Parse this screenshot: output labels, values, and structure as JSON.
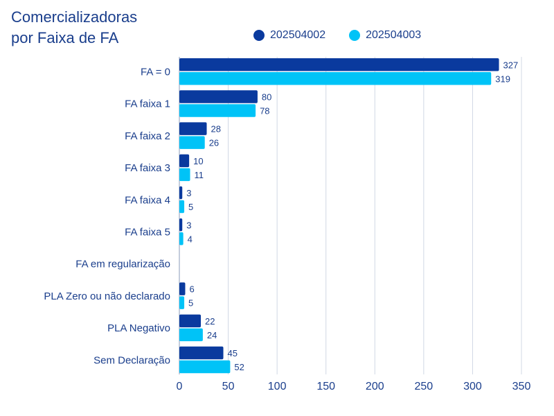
{
  "chart_data": {
    "type": "bar",
    "orientation": "horizontal",
    "title_line1": "Comercializadoras",
    "title_line2": "por Faixa de FA",
    "categories": [
      "FA = 0",
      "FA faixa 1",
      "FA faixa 2",
      "FA faixa 3",
      "FA faixa 4",
      "FA faixa 5",
      "FA em regularização",
      "PLA Zero ou não declarado",
      "PLA Negativo",
      "Sem Declaração"
    ],
    "series": [
      {
        "name": "202504002",
        "color": "#0a3a9e",
        "values": [
          327,
          80,
          28,
          10,
          3,
          3,
          null,
          6,
          22,
          45
        ]
      },
      {
        "name": "202504003",
        "color": "#00c3f7",
        "values": [
          319,
          78,
          26,
          11,
          5,
          4,
          null,
          5,
          24,
          52
        ]
      }
    ],
    "xlim": [
      0,
      350
    ],
    "xticks": [
      0,
      50,
      100,
      150,
      200,
      250,
      300,
      350
    ],
    "grid": true,
    "legend_position": "top"
  }
}
